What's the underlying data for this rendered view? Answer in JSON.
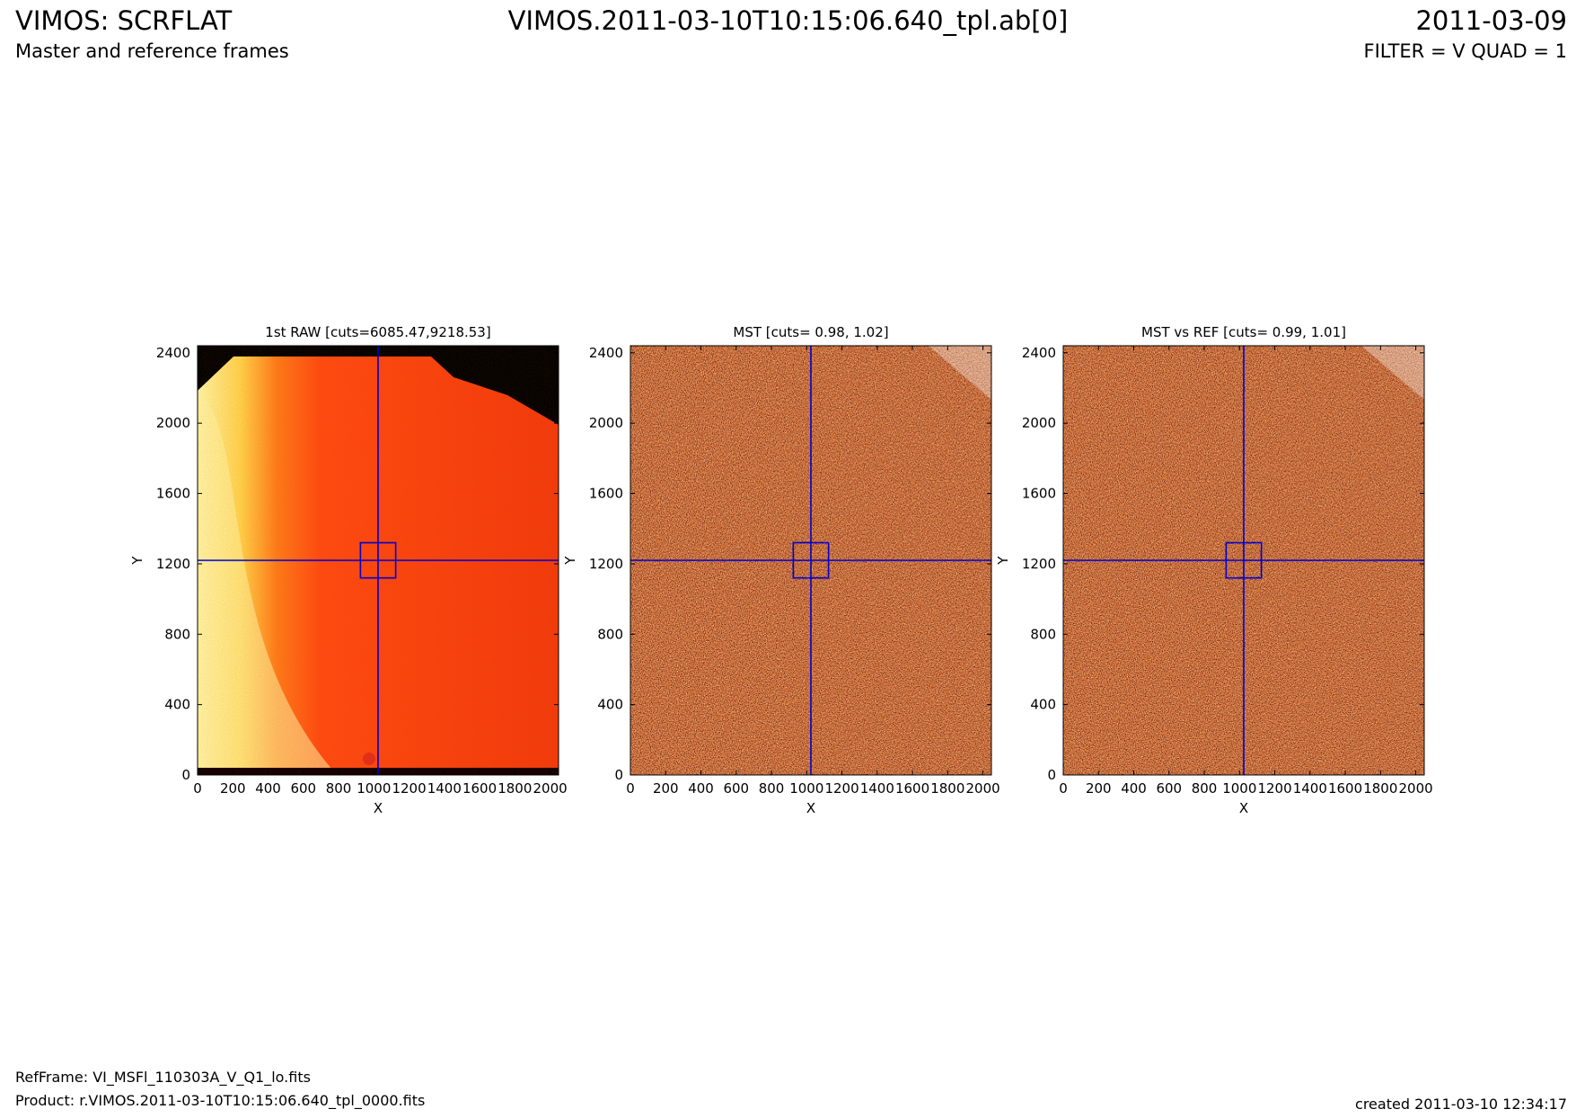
{
  "header": {
    "title_left": "VIMOS: SCRFLAT",
    "subtitle_left": "Master and reference frames",
    "title_center": "VIMOS.2011-03-10T10:15:06.640_tpl.ab[0]",
    "title_right": "2011-03-09",
    "subtitle_right": "FILTER = V QUAD = 1"
  },
  "footer": {
    "refframe": "RefFrame: VI_MSFl_110303A_V_Q1_lo.fits",
    "product": "Product: r.VIMOS.2011-03-10T10:15:06.640_tpl_0000.fits",
    "created": "created 2011-03-10 12:34:17"
  },
  "chart_data": [
    {
      "type": "heatmap",
      "title": "1st RAW [cuts=6085.47,9218.53]",
      "xlabel": "X",
      "ylabel": "Y",
      "xlim": [
        0,
        2048
      ],
      "ylim": [
        0,
        2440
      ],
      "xticks": [
        0,
        200,
        400,
        600,
        800,
        1000,
        1200,
        1400,
        1600,
        1800,
        2000
      ],
      "yticks": [
        0,
        400,
        800,
        1200,
        1600,
        2000,
        2400
      ],
      "cuts": [
        6085.47,
        9218.53
      ],
      "colormap": "hot",
      "crosshair": {
        "x": 1024,
        "y": 1220
      },
      "box": {
        "x0": 924,
        "x1": 1124,
        "y0": 1120,
        "y1": 1320
      },
      "overlay_color": "#0000cc"
    },
    {
      "type": "heatmap",
      "title": "MST [cuts= 0.98, 1.02]",
      "xlabel": "X",
      "ylabel": "Y",
      "xlim": [
        0,
        2048
      ],
      "ylim": [
        0,
        2440
      ],
      "xticks": [
        0,
        200,
        400,
        600,
        800,
        1000,
        1200,
        1400,
        1600,
        1800,
        2000
      ],
      "yticks": [
        0,
        400,
        800,
        1200,
        1600,
        2000,
        2400
      ],
      "cuts": [
        0.98,
        1.02
      ],
      "colormap": "hot",
      "crosshair": {
        "x": 1024,
        "y": 1220
      },
      "box": {
        "x0": 924,
        "x1": 1124,
        "y0": 1120,
        "y1": 1320
      },
      "overlay_color": "#0000cc"
    },
    {
      "type": "heatmap",
      "title": "MST vs REF [cuts= 0.99, 1.01]",
      "xlabel": "X",
      "ylabel": "Y",
      "xlim": [
        0,
        2048
      ],
      "ylim": [
        0,
        2440
      ],
      "xticks": [
        0,
        200,
        400,
        600,
        800,
        1000,
        1200,
        1400,
        1600,
        1800,
        2000
      ],
      "yticks": [
        0,
        400,
        800,
        1200,
        1600,
        2000,
        2400
      ],
      "cuts": [
        0.99,
        1.01
      ],
      "colormap": "hot",
      "crosshair": {
        "x": 1024,
        "y": 1220
      },
      "box": {
        "x0": 924,
        "x1": 1124,
        "y0": 1120,
        "y1": 1320
      },
      "overlay_color": "#0000cc"
    }
  ]
}
